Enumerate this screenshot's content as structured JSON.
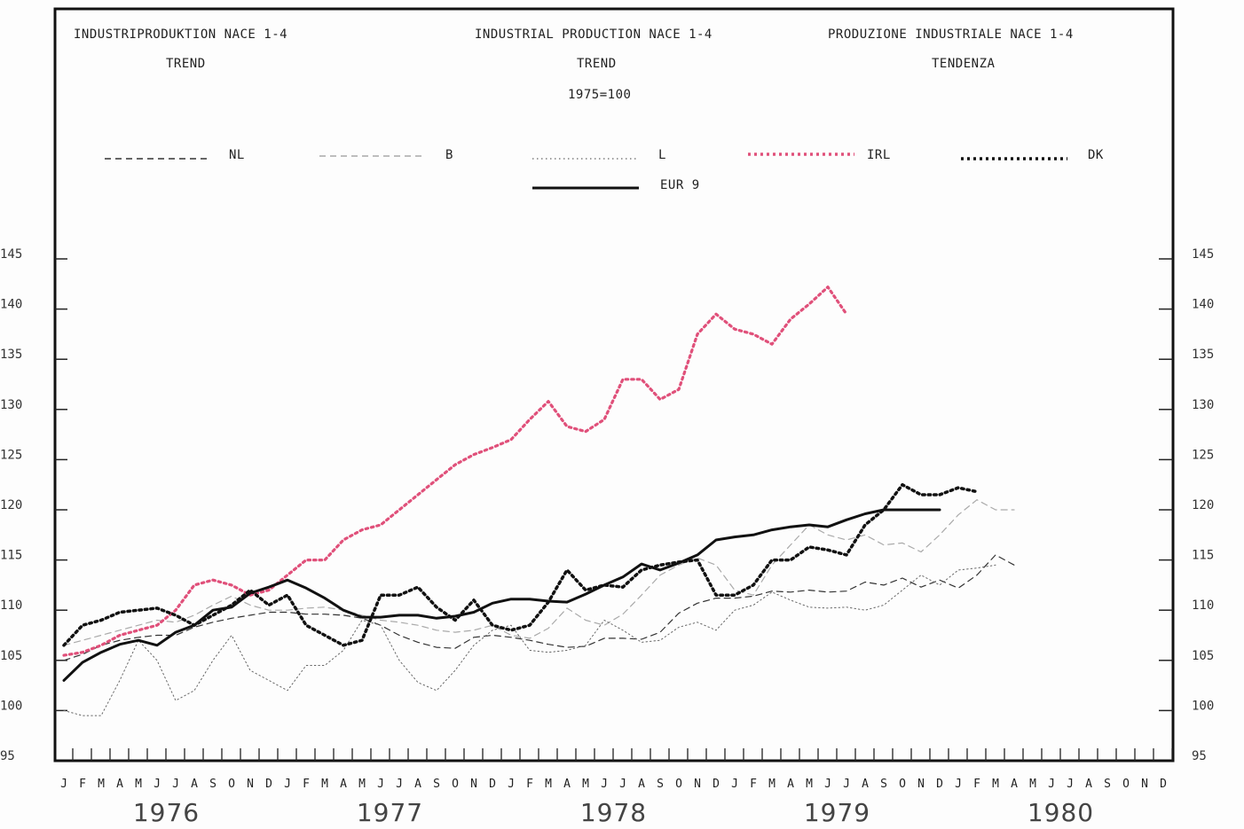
{
  "chart_data": {
    "type": "line",
    "titles": {
      "de": "INDUSTRIPRODUKTION NACE 1-4",
      "en": "INDUSTRIAL PRODUCTION NACE 1-4",
      "it": "PRODUZIONE INDUSTRIALE NACE 1-4"
    },
    "subtitles": {
      "de": "TREND",
      "en": "TREND",
      "it": "TENDENZA"
    },
    "base_note": "1975=100",
    "ylim": [
      95,
      145
    ],
    "yticks": [
      95,
      100,
      105,
      110,
      115,
      120,
      125,
      130,
      135,
      140,
      145
    ],
    "month_labels": [
      "J",
      "F",
      "M",
      "A",
      "M",
      "J",
      "J",
      "A",
      "S",
      "O",
      "N",
      "D"
    ],
    "years": [
      "1976",
      "1977",
      "1978",
      "1979",
      "1980"
    ],
    "x_start": "1976-01",
    "series": [
      {
        "name": "NL",
        "color": "#333333",
        "style": "dashed",
        "values": [
          105,
          105.6,
          106.5,
          107,
          107.3,
          107.5,
          107.5,
          108.3,
          108.8,
          109.2,
          109.5,
          109.8,
          109.8,
          109.6,
          109.6,
          109.5,
          109.2,
          108.5,
          107.5,
          106.8,
          106.3,
          106.2,
          107.3,
          107.5,
          107.3,
          107,
          106.6,
          106.3,
          106.4,
          107.2,
          107.2,
          107.1,
          107.8,
          109.7,
          110.7,
          111.2,
          111.2,
          111.4,
          111.9,
          111.8,
          112.0,
          111.8,
          111.9,
          112.8,
          112.5,
          113.2,
          112.3,
          113.0,
          112.2,
          113.5,
          115.5,
          114.5
        ]
      },
      {
        "name": "B",
        "color": "#aaaaaa",
        "style": "dashed",
        "values": [
          106.5,
          107,
          107.5,
          108,
          108.5,
          109,
          108.8,
          109.5,
          110.5,
          111.4,
          110.5,
          110,
          110,
          110.2,
          110.3,
          110,
          109.5,
          109,
          108.8,
          108.5,
          108,
          107.8,
          108,
          108.5,
          107.5,
          107.2,
          108.2,
          110.2,
          109,
          108.5,
          109.6,
          111.5,
          113.5,
          114.5,
          115.2,
          114.5,
          112,
          111.5,
          114.5,
          116.5,
          118.5,
          117.5,
          117,
          117.5,
          116.5,
          116.7,
          115.8,
          117.5,
          119.5,
          121,
          120,
          120
        ]
      },
      {
        "name": "L",
        "color": "#666666",
        "style": "dotted",
        "values": [
          100,
          99.5,
          99.5,
          103,
          107,
          105,
          101,
          102,
          105,
          107.5,
          104,
          103,
          102,
          104.5,
          104.5,
          106,
          109,
          108.5,
          105,
          102.8,
          102,
          104,
          106.5,
          108,
          108.5,
          106,
          105.8,
          106,
          106.5,
          109,
          108,
          106.8,
          107,
          108.3,
          108.8,
          108,
          110,
          110.5,
          111.8,
          111,
          110.3,
          110.2,
          110.3,
          110,
          110.5,
          112,
          113.5,
          112.5,
          114,
          114.2,
          114.5
        ]
      },
      {
        "name": "IRL",
        "color": "#e0507a",
        "style": "dotted",
        "values": [
          105.5,
          105.8,
          106.5,
          107.5,
          108,
          108.5,
          110,
          112.5,
          113,
          112.5,
          111.5,
          112,
          113.5,
          115,
          115,
          117,
          118,
          118.5,
          120,
          121.5,
          123,
          124.5,
          125.5,
          126.2,
          127,
          129,
          130.8,
          128.3,
          127.8,
          129,
          133,
          133,
          131,
          132,
          137.5,
          139.5,
          138,
          137.5,
          136.5,
          139,
          140.5,
          142.2,
          139.5
        ]
      },
      {
        "name": "DK",
        "color": "#111111",
        "style": "dotted",
        "values": [
          106.5,
          108.5,
          109,
          109.8,
          110,
          110.2,
          109.5,
          108.5,
          109.5,
          110.5,
          112,
          110.5,
          111.5,
          108.5,
          107.5,
          106.5,
          107,
          111.5,
          111.5,
          112.3,
          110.3,
          109,
          111,
          108.5,
          108,
          108.5,
          110.8,
          114,
          112,
          112.5,
          112.3,
          114,
          114.5,
          114.8,
          115,
          111.5,
          111.5,
          112.5,
          115,
          115,
          116.3,
          116,
          115.5,
          118.5,
          120,
          122.5,
          121.5,
          121.5,
          122.2,
          121.8
        ]
      },
      {
        "name": "EUR 9",
        "color": "#111111",
        "style": "solid",
        "values": [
          103,
          104.8,
          105.8,
          106.6,
          107,
          106.5,
          107.8,
          108.5,
          110,
          110.3,
          111.7,
          112.3,
          113,
          112.2,
          111.2,
          110,
          109.3,
          109.3,
          109.5,
          109.5,
          109.2,
          109.4,
          109.8,
          110.7,
          111.1,
          111.1,
          110.9,
          110.8,
          111.6,
          112.5,
          113.3,
          114.6,
          114,
          114.7,
          115.5,
          117,
          117.3,
          117.5,
          118,
          118.3,
          118.5,
          118.3,
          119,
          119.6,
          120,
          120,
          120,
          120
        ]
      }
    ]
  }
}
